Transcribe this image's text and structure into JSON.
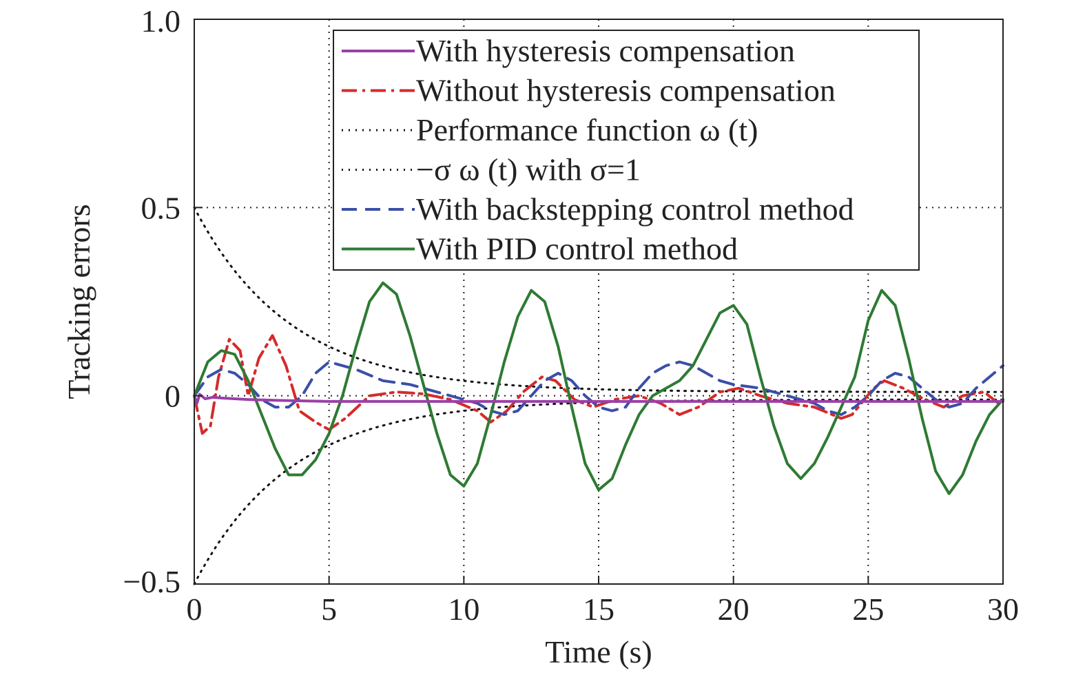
{
  "chart_data": {
    "type": "line",
    "title": "",
    "xlabel": "Time (s)",
    "ylabel": "Tracking errors",
    "xlim": [
      0,
      30
    ],
    "ylim": [
      -0.5,
      1.0
    ],
    "xticks": [
      0,
      5,
      10,
      15,
      20,
      25,
      30
    ],
    "xtick_labels": [
      "0",
      "5",
      "10",
      "15",
      "20",
      "25",
      "30"
    ],
    "yticks": [
      -0.5,
      0,
      0.5,
      1.0
    ],
    "ytick_labels": [
      "−0.5",
      "0",
      "0.5",
      "1.0"
    ],
    "grid": true,
    "grid_style": "dotted",
    "legend_position": "top-right",
    "series": [
      {
        "name": "With hysteresis compensation",
        "color": "#9b3fa7",
        "style": "solid",
        "x": [
          0,
          0.1,
          0.2,
          0.4,
          0.7,
          1.0,
          1.5,
          2.0,
          3.0,
          5.0,
          10.0,
          15.0,
          20.0,
          25.0,
          30.0
        ],
        "y": [
          0,
          -0.02,
          0.004,
          -0.008,
          -0.004,
          -0.006,
          -0.008,
          -0.01,
          -0.012,
          -0.015,
          -0.015,
          -0.015,
          -0.015,
          -0.015,
          -0.015
        ]
      },
      {
        "name": "Without hysteresis compensation",
        "color": "#d62a2a",
        "style": "dashdot",
        "x": [
          0,
          0.3,
          0.6,
          0.9,
          1.3,
          1.7,
          2.0,
          2.4,
          2.9,
          3.4,
          3.9,
          4.5,
          5.0,
          5.6,
          6.5,
          7.5,
          8.5,
          9.5,
          10.5,
          11.0,
          11.6,
          12.2,
          12.9,
          13.4,
          14.1,
          14.8,
          15.6,
          16.5,
          17.3,
          18.0,
          18.7,
          19.5,
          20.2,
          21.0,
          22.0,
          23.0,
          24.0,
          24.4,
          25.2,
          25.6,
          26.3,
          27.1,
          27.8,
          28.5,
          29.3,
          30.0
        ],
        "y": [
          0,
          -0.1,
          -0.08,
          0.05,
          0.15,
          0.12,
          0.0,
          0.1,
          0.16,
          0.08,
          -0.04,
          -0.07,
          -0.09,
          -0.06,
          0.0,
          0.01,
          0.005,
          -0.01,
          -0.04,
          -0.07,
          -0.04,
          0.01,
          0.05,
          0.04,
          -0.01,
          -0.03,
          -0.01,
          0.0,
          -0.02,
          -0.05,
          -0.03,
          0.01,
          0.02,
          0.0,
          -0.02,
          -0.03,
          -0.06,
          -0.05,
          0.02,
          0.04,
          0.02,
          -0.01,
          -0.03,
          0.0,
          0.01,
          -0.03
        ]
      },
      {
        "name": "Performance function ω (t)",
        "color": "#111111",
        "style": "dotted",
        "function": "0.49*exp(-0.28*t)+0.01"
      },
      {
        "name": "−σ ω (t) with σ=1",
        "color": "#111111",
        "style": "dotted",
        "function": "-(0.49*exp(-0.28*t)+0.01)"
      },
      {
        "name": "With backstepping control method",
        "color": "#3a4fa8",
        "style": "dashed",
        "x": [
          0,
          0.5,
          1.0,
          1.5,
          2.0,
          2.5,
          3.0,
          3.5,
          4.0,
          4.5,
          5.0,
          6.0,
          7.0,
          8.0,
          9.0,
          10.0,
          10.5,
          11.0,
          11.5,
          12.0,
          12.5,
          13.0,
          13.5,
          14.0,
          14.5,
          15.0,
          15.5,
          16.0,
          16.5,
          17.0,
          17.5,
          18.0,
          18.5,
          19.0,
          19.5,
          20.0,
          21.0,
          22.0,
          23.0,
          23.5,
          24.0,
          24.5,
          25.0,
          25.5,
          26.0,
          26.5,
          27.0,
          27.5,
          28.0,
          28.5,
          29.0,
          29.5,
          30.0
        ],
        "y": [
          0,
          0.05,
          0.07,
          0.06,
          0.03,
          -0.01,
          -0.03,
          -0.03,
          0.0,
          0.06,
          0.09,
          0.07,
          0.04,
          0.03,
          0.01,
          -0.01,
          -0.02,
          -0.04,
          -0.05,
          -0.04,
          0.0,
          0.04,
          0.06,
          0.04,
          0.0,
          -0.03,
          -0.04,
          -0.03,
          0.02,
          0.06,
          0.08,
          0.09,
          0.08,
          0.06,
          0.04,
          0.03,
          0.02,
          0.0,
          -0.02,
          -0.04,
          -0.05,
          -0.03,
          0.0,
          0.04,
          0.06,
          0.05,
          0.02,
          -0.01,
          -0.03,
          -0.02,
          0.02,
          0.05,
          0.08
        ]
      },
      {
        "name": "With PID control method",
        "color": "#2e7a33",
        "style": "solid",
        "x": [
          0,
          0.5,
          1.0,
          1.5,
          2.0,
          2.5,
          3.0,
          3.5,
          4.0,
          4.5,
          5.0,
          5.5,
          6.0,
          6.5,
          7.0,
          7.5,
          8.0,
          8.5,
          9.0,
          9.5,
          10.0,
          10.5,
          11.0,
          11.5,
          12.0,
          12.5,
          13.0,
          13.5,
          14.0,
          14.5,
          15.0,
          15.5,
          16.0,
          16.5,
          17.0,
          17.5,
          18.0,
          18.5,
          19.0,
          19.5,
          20.0,
          20.5,
          21.0,
          21.5,
          22.0,
          22.5,
          23.0,
          23.5,
          24.0,
          24.5,
          25.0,
          25.5,
          26.0,
          26.5,
          27.0,
          27.5,
          28.0,
          28.5,
          29.0,
          29.5,
          30.0
        ],
        "y": [
          0,
          0.09,
          0.12,
          0.11,
          0.04,
          -0.05,
          -0.14,
          -0.21,
          -0.21,
          -0.17,
          -0.1,
          0.0,
          0.13,
          0.25,
          0.3,
          0.27,
          0.16,
          0.03,
          -0.1,
          -0.21,
          -0.24,
          -0.18,
          -0.05,
          0.09,
          0.21,
          0.28,
          0.25,
          0.13,
          -0.03,
          -0.18,
          -0.25,
          -0.22,
          -0.13,
          -0.05,
          0.0,
          0.02,
          0.04,
          0.08,
          0.15,
          0.22,
          0.24,
          0.19,
          0.05,
          -0.08,
          -0.18,
          -0.22,
          -0.18,
          -0.11,
          -0.03,
          0.05,
          0.2,
          0.28,
          0.24,
          0.1,
          -0.06,
          -0.2,
          -0.26,
          -0.21,
          -0.12,
          -0.05,
          -0.01
        ]
      }
    ]
  }
}
